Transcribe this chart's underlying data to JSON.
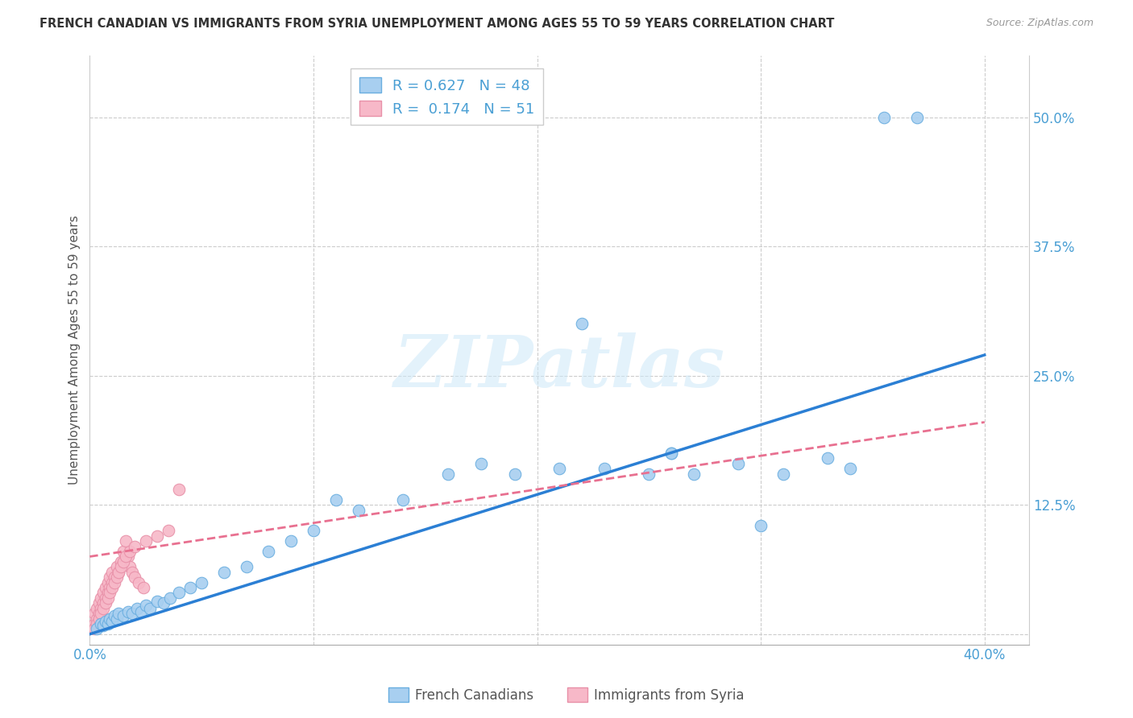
{
  "title": "FRENCH CANADIAN VS IMMIGRANTS FROM SYRIA UNEMPLOYMENT AMONG AGES 55 TO 59 YEARS CORRELATION CHART",
  "source": "Source: ZipAtlas.com",
  "ylabel": "Unemployment Among Ages 55 to 59 years",
  "xlim": [
    0.0,
    0.42
  ],
  "ylim": [
    -0.01,
    0.56
  ],
  "xticks": [
    0.0,
    0.1,
    0.2,
    0.3,
    0.4
  ],
  "xtick_labels": [
    "0.0%",
    "",
    "",
    "",
    "40.0%"
  ],
  "ytick_labels": [
    "",
    "12.5%",
    "25.0%",
    "37.5%",
    "50.0%"
  ],
  "yticks": [
    0.0,
    0.125,
    0.25,
    0.375,
    0.5
  ],
  "blue_R": 0.627,
  "blue_N": 48,
  "pink_R": 0.174,
  "pink_N": 51,
  "blue_color": "#a8cff0",
  "pink_color": "#f7b8c8",
  "blue_edge_color": "#6aaee0",
  "pink_edge_color": "#e890a8",
  "blue_line_color": "#2b7fd4",
  "pink_line_color": "#e87090",
  "grid_color": "#cccccc",
  "background_color": "#ffffff",
  "watermark": "ZIPatlas",
  "blue_scatter_x": [
    0.003,
    0.005,
    0.006,
    0.007,
    0.008,
    0.009,
    0.01,
    0.011,
    0.012,
    0.013,
    0.015,
    0.017,
    0.019,
    0.021,
    0.023,
    0.025,
    0.027,
    0.03,
    0.033,
    0.036,
    0.04,
    0.045,
    0.05,
    0.06,
    0.07,
    0.08,
    0.09,
    0.1,
    0.11,
    0.12,
    0.14,
    0.16,
    0.175,
    0.19,
    0.21,
    0.23,
    0.25,
    0.26,
    0.27,
    0.29,
    0.31,
    0.33,
    0.355,
    0.37,
    0.22,
    0.26,
    0.3,
    0.34
  ],
  "blue_scatter_y": [
    0.005,
    0.01,
    0.008,
    0.012,
    0.01,
    0.015,
    0.012,
    0.018,
    0.015,
    0.02,
    0.018,
    0.022,
    0.02,
    0.025,
    0.022,
    0.028,
    0.025,
    0.032,
    0.03,
    0.035,
    0.04,
    0.045,
    0.05,
    0.06,
    0.065,
    0.08,
    0.09,
    0.1,
    0.13,
    0.12,
    0.13,
    0.155,
    0.165,
    0.155,
    0.16,
    0.16,
    0.155,
    0.175,
    0.155,
    0.165,
    0.155,
    0.17,
    0.5,
    0.5,
    0.3,
    0.175,
    0.105,
    0.16
  ],
  "pink_scatter_x": [
    0.002,
    0.002,
    0.003,
    0.003,
    0.004,
    0.004,
    0.005,
    0.005,
    0.006,
    0.006,
    0.007,
    0.007,
    0.008,
    0.008,
    0.009,
    0.009,
    0.01,
    0.01,
    0.011,
    0.012,
    0.013,
    0.014,
    0.015,
    0.016,
    0.017,
    0.018,
    0.019,
    0.02,
    0.022,
    0.024,
    0.002,
    0.003,
    0.004,
    0.005,
    0.006,
    0.007,
    0.008,
    0.009,
    0.01,
    0.011,
    0.012,
    0.013,
    0.014,
    0.015,
    0.016,
    0.018,
    0.02,
    0.025,
    0.03,
    0.035,
    0.04
  ],
  "pink_scatter_y": [
    0.01,
    0.02,
    0.015,
    0.025,
    0.02,
    0.03,
    0.025,
    0.035,
    0.03,
    0.04,
    0.035,
    0.045,
    0.04,
    0.05,
    0.045,
    0.055,
    0.05,
    0.06,
    0.055,
    0.065,
    0.06,
    0.07,
    0.08,
    0.09,
    0.075,
    0.065,
    0.06,
    0.055,
    0.05,
    0.045,
    0.005,
    0.01,
    0.015,
    0.02,
    0.025,
    0.03,
    0.035,
    0.04,
    0.045,
    0.05,
    0.055,
    0.06,
    0.065,
    0.07,
    0.075,
    0.08,
    0.085,
    0.09,
    0.095,
    0.1,
    0.14
  ],
  "blue_line_x": [
    0.0,
    0.4
  ],
  "blue_line_y": [
    0.0,
    0.27
  ],
  "pink_line_x": [
    0.0,
    0.4
  ],
  "pink_line_y": [
    0.075,
    0.205
  ]
}
